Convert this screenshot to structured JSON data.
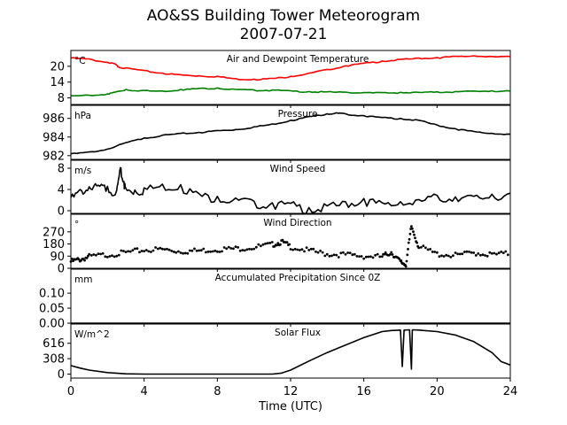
{
  "title": "AO&SS Building Tower Meteorogram",
  "subtitle": "2007-07-21",
  "xlabel": "Time (UTC)",
  "x_ticks": [
    "0",
    "4",
    "8",
    "12",
    "16",
    "20",
    "24"
  ],
  "chart_data": [
    {
      "type": "line",
      "title": "Air and Dewpoint Temperature",
      "unit": "°C",
      "ylim": [
        5.5,
        26
      ],
      "y_ticks": [
        8,
        14,
        20
      ],
      "series": [
        {
          "color": "#ff0000",
          "x": [
            0,
            1,
            2,
            2.4,
            2.6,
            3,
            4,
            5,
            6,
            7,
            8,
            9,
            10,
            11,
            12,
            13,
            14,
            15,
            16,
            17,
            18,
            19,
            20,
            21,
            22,
            23,
            24
          ],
          "y": [
            23.2,
            22.8,
            21.5,
            21,
            19.8,
            19.4,
            18.4,
            17.4,
            16.8,
            16.4,
            16.2,
            15.3,
            15.1,
            15.4,
            16.2,
            17.4,
            18.8,
            20.2,
            21.2,
            22,
            22.6,
            23.1,
            23.3,
            23.8,
            24,
            23.7,
            23.7
          ]
        },
        {
          "color": "#008000",
          "x": [
            0,
            1,
            2,
            2.5,
            3,
            4,
            5,
            6,
            7,
            8,
            9,
            10,
            11,
            12,
            13,
            14,
            15,
            16,
            17,
            18,
            19,
            20,
            21,
            22,
            23,
            24
          ],
          "y": [
            8.8,
            9,
            9.5,
            10.4,
            11.2,
            10.8,
            10.6,
            11.2,
            11.6,
            11.8,
            11.2,
            11,
            11,
            10.7,
            10.4,
            10.3,
            10.2,
            10,
            10,
            10.1,
            10.1,
            10.3,
            10.4,
            10.6,
            10.7,
            10.6
          ]
        }
      ]
    },
    {
      "type": "line",
      "title": "Pressure",
      "unit": "hPa",
      "ylim": [
        981.6,
        987.4
      ],
      "y_ticks": [
        982,
        984,
        986
      ],
      "series": [
        {
          "color": "#000000",
          "x": [
            0,
            1,
            2,
            3,
            4,
            5,
            6,
            7,
            8,
            9,
            10,
            11,
            12,
            13,
            14,
            14.5,
            15,
            16,
            17,
            18,
            19,
            20,
            21,
            22,
            23,
            24
          ],
          "y": [
            982.2,
            982.4,
            982.7,
            983.4,
            983.9,
            984.2,
            984.4,
            984.5,
            984.7,
            984.8,
            985.1,
            985.4,
            985.8,
            986.2,
            986.5,
            986.6,
            986.5,
            986.3,
            986.1,
            986,
            985.8,
            985.3,
            984.9,
            984.6,
            984.4,
            984.3
          ]
        }
      ]
    },
    {
      "type": "line",
      "title": "Wind Speed",
      "unit": "m/s",
      "ylim": [
        -0.5,
        9.5
      ],
      "y_ticks": [
        0,
        4,
        8
      ],
      "series": [
        {
          "color": "#000000",
          "x": [
            0,
            0.5,
            1,
            1.5,
            2,
            2.5,
            2.7,
            2.9,
            3,
            3.5,
            4,
            5,
            6,
            7,
            8,
            9,
            10,
            11,
            12,
            13,
            14,
            15,
            16,
            17,
            18,
            19,
            20,
            21,
            22,
            23,
            24
          ],
          "y": [
            2.5,
            4,
            4.5,
            4.8,
            4.6,
            3.8,
            8.1,
            5.5,
            4.2,
            3.9,
            4.3,
            5,
            4.9,
            3.2,
            2.7,
            2.4,
            1.8,
            1.5,
            1.4,
            0.6,
            0.9,
            1.7,
            2.3,
            1.5,
            1.7,
            2.1,
            2.9,
            2.6,
            2.7,
            3.1,
            3.3
          ]
        }
      ]
    },
    {
      "type": "scatter",
      "title": "Wind Direction",
      "unit": "°",
      "ylim": [
        0,
        400
      ],
      "y_ticks": [
        0,
        90,
        180,
        270
      ],
      "series": [
        {
          "color": "#000000",
          "x": [
            0,
            0.5,
            1,
            2,
            3,
            4,
            5,
            6,
            7,
            8,
            9,
            10,
            11,
            11.5,
            12,
            13,
            14,
            15,
            16,
            17,
            17.5,
            18,
            18.3,
            18.6,
            19,
            20,
            21,
            22,
            23,
            24
          ],
          "y": [
            60,
            75,
            95,
            110,
            125,
            145,
            150,
            135,
            140,
            150,
            155,
            165,
            185,
            205,
            170,
            140,
            115,
            110,
            100,
            95,
            130,
            55,
            40,
            320,
            170,
            115,
            105,
            125,
            110,
            120
          ]
        }
      ]
    },
    {
      "type": "line",
      "title": "Accumulated Precipitation Since 0Z",
      "unit": "mm",
      "ylim": [
        0,
        0.18
      ],
      "y_ticks": [
        0.0,
        0.05,
        0.1
      ],
      "series": [
        {
          "color": "#000000",
          "x": [
            0,
            24
          ],
          "y": [
            0,
            0
          ]
        }
      ]
    },
    {
      "type": "line",
      "title": "Solar Flux",
      "unit": "W/m^2",
      "ylim": [
        -80,
        1000
      ],
      "y_ticks": [
        0,
        308,
        616
      ],
      "series": [
        {
          "color": "#000000",
          "x": [
            0,
            0.5,
            1,
            2,
            3,
            4,
            5,
            6,
            7,
            8,
            9,
            10,
            11,
            11.5,
            12,
            13,
            14,
            15,
            16,
            17,
            17.5,
            18,
            18.1,
            18.2,
            18.5,
            18.6,
            18.65,
            18.7,
            19,
            20,
            21,
            22,
            23,
            23.5,
            24
          ],
          "y": [
            170,
            120,
            80,
            30,
            5,
            0,
            0,
            0,
            0,
            0,
            0,
            0,
            0,
            20,
            80,
            260,
            430,
            580,
            730,
            850,
            870,
            880,
            150,
            880,
            885,
            100,
            880,
            885,
            880,
            850,
            780,
            650,
            430,
            250,
            180
          ]
        }
      ]
    }
  ]
}
